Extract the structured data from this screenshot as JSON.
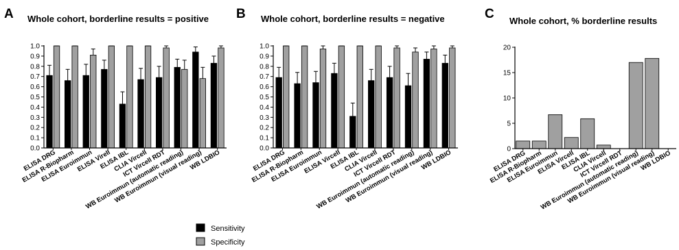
{
  "legend": [
    {
      "label": "Sensitivity",
      "color": "#000000"
    },
    {
      "label": "Specificity",
      "color": "#a0a0a0"
    }
  ],
  "chart_data": [
    {
      "panel": "A",
      "type": "bar",
      "title": "Whole cohort, borderline results = positive",
      "ylim": [
        0,
        1.0
      ],
      "yticks": [
        "0.0",
        "0.1",
        "0.2",
        "0.3",
        "0.4",
        "0.5",
        "0.6",
        "0.7",
        "0.8",
        "0.9",
        "1.0"
      ],
      "categories": [
        "ELISA DRG",
        "ELISA R-Biopharm",
        "ELISA Euroimmun",
        "ELISA Virell",
        "ELISA IBL",
        "CLIA Vircell",
        "ICT Vircell RDT",
        "WB Euroimmun (automatic reading)",
        "WB Euroimmun (visual reading)",
        "WB LDBIO"
      ],
      "series": [
        {
          "name": "Sensitivity",
          "values": [
            0.71,
            0.66,
            0.71,
            0.77,
            0.43,
            0.67,
            0.69,
            0.79,
            0.94,
            0.83
          ],
          "errors": [
            0.1,
            0.11,
            0.11,
            0.09,
            0.12,
            0.11,
            0.11,
            0.08,
            0.05,
            0.07
          ]
        },
        {
          "name": "Specificity",
          "values": [
            1.0,
            1.0,
            0.91,
            1.0,
            1.0,
            1.0,
            0.98,
            0.77,
            0.68,
            0.98
          ],
          "errors": [
            0,
            0,
            0.06,
            0,
            0,
            0,
            0.02,
            0.09,
            0.11,
            0.02
          ]
        }
      ]
    },
    {
      "panel": "B",
      "type": "bar",
      "title": "Whole cohort, borderline results = negative",
      "ylim": [
        0,
        1.0
      ],
      "yticks": [
        "0.0",
        "0.1",
        "0.2",
        "0.3",
        "0.4",
        "0.5",
        "0.6",
        "0.7",
        "0.8",
        "0.9",
        "1.0"
      ],
      "categories": [
        "ELISA DRG",
        "ELISA R-Biopharm",
        "ELISA Euroimmun",
        "ELISA Vircell",
        "ELISA IBL",
        "CLIA Vircell",
        "ICT Vircell RDT",
        "WB Euroimmun (automatic reading)",
        "WB Euroimmun (visual reading)",
        "WB LDBIO"
      ],
      "series": [
        {
          "name": "Sensitivity",
          "values": [
            0.69,
            0.63,
            0.64,
            0.73,
            0.31,
            0.66,
            0.69,
            0.61,
            0.87,
            0.83
          ],
          "errors": [
            0.1,
            0.11,
            0.11,
            0.1,
            0.13,
            0.11,
            0.11,
            0.12,
            0.07,
            0.08
          ]
        },
        {
          "name": "Specificity",
          "values": [
            1.0,
            1.0,
            0.97,
            1.0,
            1.0,
            1.0,
            0.98,
            0.94,
            0.97,
            0.98
          ],
          "errors": [
            0,
            0,
            0.03,
            0,
            0,
            0,
            0.02,
            0.04,
            0.03,
            0.02
          ]
        }
      ]
    },
    {
      "panel": "C",
      "type": "bar",
      "title": "Whole cohort, % borderline results",
      "ylim": [
        0,
        20
      ],
      "yticks": [
        "0",
        "5",
        "10",
        "15",
        "20"
      ],
      "categories": [
        "ELISA DRG",
        "ELISA R-Biopharm",
        "ELISA Euroimmun",
        "ELISA Vircell",
        "ELISA IBL",
        "CLIA Vircell",
        "ICT Vircell RDT",
        "WB Euroimmun (automatic reading)",
        "WB Euroimmun (visual reading)",
        "WB LDBIO"
      ],
      "series": [
        {
          "values": [
            1.5,
            1.5,
            6.7,
            2.2,
            5.9,
            0.7,
            0,
            17.0,
            17.8,
            0
          ]
        }
      ]
    }
  ]
}
